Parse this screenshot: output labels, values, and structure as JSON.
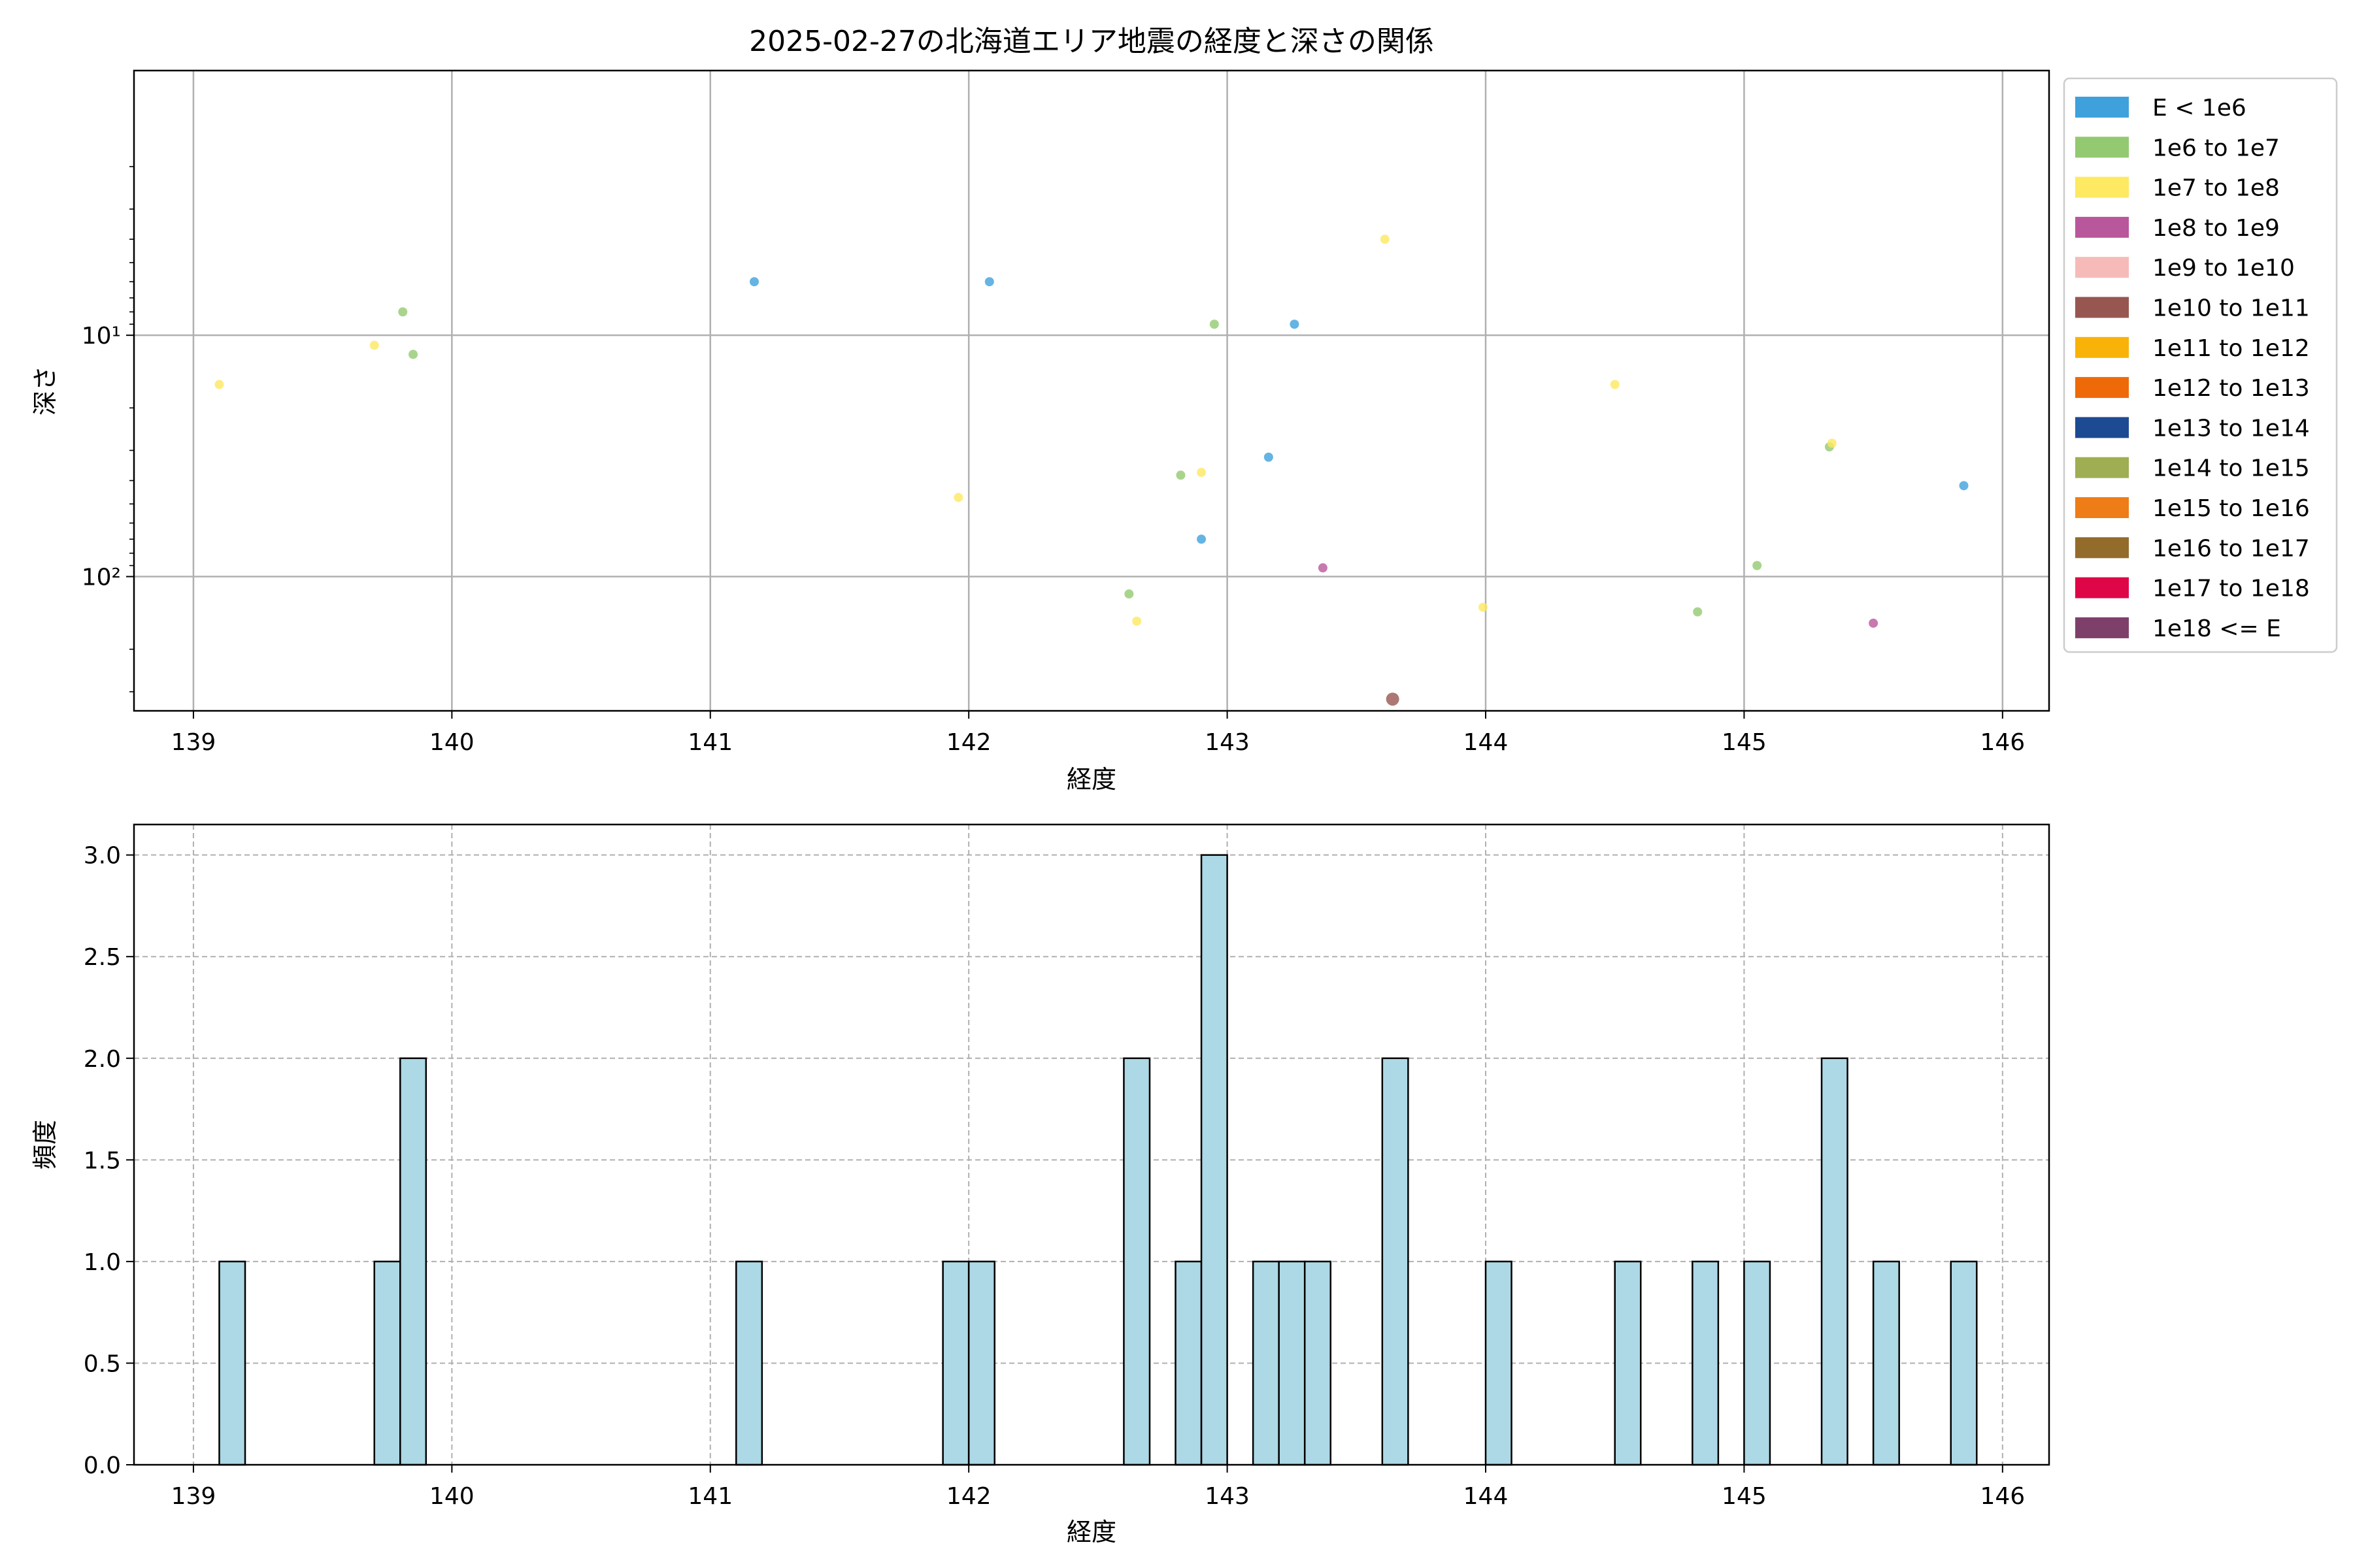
{
  "colors": {
    "frame": "#000000",
    "grid": "#b0b0b0",
    "hist_fill": "#add8e6",
    "hist_edge": "#000000"
  },
  "chart_data": [
    {
      "type": "scatter",
      "title": "2025-02-27の北海道エリア地震の経度と深さの関係",
      "xlabel": "経度",
      "ylabel": "深さ",
      "xlim": [
        138.77,
        146.18
      ],
      "ylim": [
        0.8,
        360
      ],
      "yscale": "log",
      "y_inverted": true,
      "grid": true,
      "legend_position": "outside-right",
      "x_ticks": [
        139,
        140,
        141,
        142,
        143,
        144,
        145,
        146
      ],
      "y_ticks": [
        {
          "value": 10,
          "label": "10¹"
        },
        {
          "value": 100,
          "label": "10²"
        }
      ],
      "series": [
        {
          "name": "E < 1e6",
          "color": "#3ea1dc",
          "points": [
            {
              "x": 141.17,
              "y": 6
            },
            {
              "x": 142.08,
              "y": 6
            },
            {
              "x": 143.26,
              "y": 9
            },
            {
              "x": 143.16,
              "y": 32
            },
            {
              "x": 142.9,
              "y": 70
            },
            {
              "x": 145.85,
              "y": 42
            }
          ]
        },
        {
          "name": "1e6 to 1e7",
          "color": "#93c970",
          "points": [
            {
              "x": 139.81,
              "y": 8
            },
            {
              "x": 139.85,
              "y": 12
            },
            {
              "x": 142.95,
              "y": 9
            },
            {
              "x": 142.82,
              "y": 38
            },
            {
              "x": 142.62,
              "y": 118
            },
            {
              "x": 145.05,
              "y": 90
            },
            {
              "x": 145.33,
              "y": 29
            },
            {
              "x": 144.82,
              "y": 140
            }
          ]
        },
        {
          "name": "1e7 to 1e8",
          "color": "#fde962",
          "points": [
            {
              "x": 139.1,
              "y": 16
            },
            {
              "x": 139.7,
              "y": 11
            },
            {
              "x": 143.61,
              "y": 4
            },
            {
              "x": 141.96,
              "y": 47
            },
            {
              "x": 142.9,
              "y": 37
            },
            {
              "x": 142.65,
              "y": 153
            },
            {
              "x": 143.99,
              "y": 134
            },
            {
              "x": 144.5,
              "y": 16
            },
            {
              "x": 145.34,
              "y": 28
            }
          ]
        },
        {
          "name": "1e8 to 1e9",
          "color": "#b9579c",
          "points": [
            {
              "x": 143.37,
              "y": 92
            },
            {
              "x": 145.5,
              "y": 156
            }
          ]
        },
        {
          "name": "1e9 to 1e10",
          "color": "#f6bbb9",
          "points": []
        },
        {
          "name": "1e10 to 1e11",
          "color": "#985650",
          "points": [
            {
              "x": 143.64,
              "y": 322
            }
          ]
        },
        {
          "name": "1e11 to 1e12",
          "color": "#f9b207",
          "points": []
        },
        {
          "name": "1e12 to 1e13",
          "color": "#ee6a08",
          "points": []
        },
        {
          "name": "1e13 to 1e14",
          "color": "#1d4b93",
          "points": []
        },
        {
          "name": "1e14 to 1e15",
          "color": "#9fae52",
          "points": []
        },
        {
          "name": "1e15 to 1e16",
          "color": "#ef7d17",
          "points": []
        },
        {
          "name": "1e16 to 1e17",
          "color": "#936c2b",
          "points": []
        },
        {
          "name": "1e17 to 1e18",
          "color": "#de0647",
          "points": []
        },
        {
          "name": "1e18 <= E",
          "color": "#7e406b",
          "points": []
        }
      ]
    },
    {
      "type": "bar",
      "title": "",
      "xlabel": "経度",
      "ylabel": "頻度",
      "xlim": [
        138.77,
        146.18
      ],
      "ylim": [
        0,
        3.15
      ],
      "grid": true,
      "x_ticks": [
        139,
        140,
        141,
        142,
        143,
        144,
        145,
        146
      ],
      "y_ticks": [
        {
          "value": 0,
          "label": "0.0"
        },
        {
          "value": 0.5,
          "label": "0.5"
        },
        {
          "value": 1,
          "label": "1.0"
        },
        {
          "value": 1.5,
          "label": "1.5"
        },
        {
          "value": 2,
          "label": "2.0"
        },
        {
          "value": 2.5,
          "label": "2.5"
        },
        {
          "value": 3,
          "label": "3.0"
        }
      ],
      "bins": [
        {
          "x0": 139.1,
          "x1": 139.2,
          "count": 1
        },
        {
          "x0": 139.7,
          "x1": 139.8,
          "count": 1
        },
        {
          "x0": 139.8,
          "x1": 139.9,
          "count": 2
        },
        {
          "x0": 141.1,
          "x1": 141.2,
          "count": 1
        },
        {
          "x0": 141.9,
          "x1": 142.0,
          "count": 1
        },
        {
          "x0": 142.0,
          "x1": 142.1,
          "count": 1
        },
        {
          "x0": 142.6,
          "x1": 142.7,
          "count": 2
        },
        {
          "x0": 142.8,
          "x1": 142.9,
          "count": 1
        },
        {
          "x0": 142.9,
          "x1": 143.0,
          "count": 3
        },
        {
          "x0": 143.1,
          "x1": 143.2,
          "count": 1
        },
        {
          "x0": 143.2,
          "x1": 143.3,
          "count": 1
        },
        {
          "x0": 143.3,
          "x1": 143.4,
          "count": 1
        },
        {
          "x0": 143.6,
          "x1": 143.7,
          "count": 2
        },
        {
          "x0": 144.0,
          "x1": 144.1,
          "count": 1
        },
        {
          "x0": 144.5,
          "x1": 144.6,
          "count": 1
        },
        {
          "x0": 144.8,
          "x1": 144.9,
          "count": 1
        },
        {
          "x0": 145.0,
          "x1": 145.1,
          "count": 1
        },
        {
          "x0": 145.3,
          "x1": 145.4,
          "count": 2
        },
        {
          "x0": 145.5,
          "x1": 145.6,
          "count": 1
        },
        {
          "x0": 145.8,
          "x1": 145.9,
          "count": 1
        }
      ]
    }
  ]
}
